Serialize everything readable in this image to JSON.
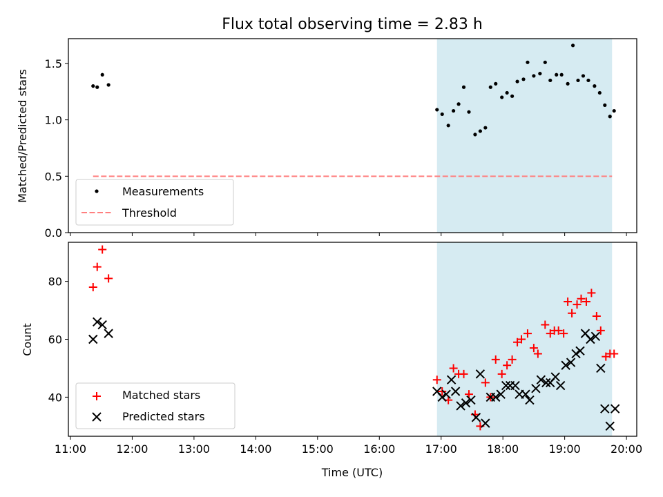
{
  "chart_data": [
    {
      "type": "scatter",
      "title": "Flux total observing time = 2.83 h",
      "ylabel": "Matched/Predicted stars",
      "xlabel": "",
      "xlim": [
        "10:58",
        "20:10"
      ],
      "ylim": [
        0,
        1.72
      ],
      "x_ticks": [
        "11:00",
        "12:00",
        "13:00",
        "14:00",
        "15:00",
        "16:00",
        "17:00",
        "18:00",
        "19:00",
        "20:00"
      ],
      "y_ticks": [
        "0.0",
        "0.5",
        "1.0",
        "1.5"
      ],
      "grid": false,
      "legend_position": "lower-left",
      "shaded_interval": {
        "start": "16:56",
        "end": "19:46",
        "color": "#add8e6"
      },
      "series": [
        {
          "name": "Measurements",
          "marker": "dot",
          "color": "#000000",
          "x": [
            "11:22",
            "11:26",
            "11:31",
            "11:37",
            "16:56",
            "17:01",
            "17:07",
            "17:12",
            "17:17",
            "17:22",
            "17:27",
            "17:33",
            "17:38",
            "17:43",
            "17:48",
            "17:53",
            "17:59",
            "18:04",
            "18:09",
            "18:14",
            "18:20",
            "18:24",
            "18:30",
            "18:36",
            "18:41",
            "18:46",
            "18:52",
            "18:57",
            "19:03",
            "19:08",
            "19:13",
            "19:18",
            "19:23",
            "19:29",
            "19:34",
            "19:39",
            "19:44",
            "19:48"
          ],
          "y": [
            1.3,
            1.29,
            1.4,
            1.31,
            1.09,
            1.05,
            0.95,
            1.08,
            1.14,
            1.29,
            1.07,
            0.87,
            0.9,
            0.93,
            1.29,
            1.32,
            1.2,
            1.24,
            1.21,
            1.34,
            1.36,
            1.51,
            1.39,
            1.41,
            1.51,
            1.35,
            1.4,
            1.4,
            1.32,
            1.66,
            1.35,
            1.39,
            1.35,
            1.3,
            1.24,
            1.13,
            1.03,
            1.08
          ]
        },
        {
          "name": "Threshold",
          "line_style": "dashed",
          "color": "#ff7f7f",
          "x": [
            "11:22",
            "19:46"
          ],
          "y": [
            0.5,
            0.5
          ]
        }
      ]
    },
    {
      "type": "scatter",
      "title": "",
      "ylabel": "Count",
      "xlabel": "Time (UTC)",
      "xlim": [
        "10:58",
        "20:10"
      ],
      "ylim": [
        26.5,
        93.5
      ],
      "x_ticks": [
        "11:00",
        "12:00",
        "13:00",
        "14:00",
        "15:00",
        "16:00",
        "17:00",
        "18:00",
        "19:00",
        "20:00"
      ],
      "y_ticks": [
        "40",
        "60",
        "80"
      ],
      "grid": false,
      "legend_position": "lower-left",
      "shaded_interval": {
        "start": "16:56",
        "end": "19:46",
        "color": "#add8e6"
      },
      "series": [
        {
          "name": "Matched stars",
          "marker": "plus",
          "color": "#ff0000",
          "x": [
            "11:22",
            "11:26",
            "11:31",
            "11:37",
            "16:56",
            "17:01",
            "17:07",
            "17:12",
            "17:17",
            "17:22",
            "17:27",
            "17:33",
            "17:38",
            "17:43",
            "17:48",
            "17:53",
            "17:59",
            "18:04",
            "18:09",
            "18:14",
            "18:18",
            "18:24",
            "18:30",
            "18:34",
            "18:41",
            "18:46",
            "18:50",
            "18:54",
            "18:59",
            "19:03",
            "19:07",
            "19:12",
            "19:16",
            "19:21",
            "19:26",
            "19:31",
            "19:35",
            "19:40",
            "19:44",
            "19:48"
          ],
          "y": [
            78,
            85,
            91,
            81,
            46,
            42,
            39,
            50,
            48,
            48,
            41,
            34,
            30,
            45,
            40,
            53,
            48,
            51,
            53,
            59,
            60,
            62,
            57,
            55,
            65,
            62,
            63,
            63,
            62,
            73,
            69,
            72,
            74,
            73,
            76,
            68,
            63,
            54,
            55,
            55
          ]
        },
        {
          "name": "Predicted stars",
          "marker": "x",
          "color": "#000000",
          "x": [
            "11:22",
            "11:26",
            "11:31",
            "11:37",
            "16:56",
            "17:01",
            "17:05",
            "17:10",
            "17:14",
            "17:19",
            "17:24",
            "17:29",
            "17:34",
            "17:38",
            "17:43",
            "17:48",
            "17:53",
            "17:58",
            "18:03",
            "18:07",
            "18:12",
            "18:16",
            "18:22",
            "18:26",
            "18:32",
            "18:37",
            "18:42",
            "18:46",
            "18:51",
            "18:56",
            "19:01",
            "19:06",
            "19:11",
            "19:15",
            "19:20",
            "19:25",
            "19:30",
            "19:35",
            "19:39",
            "19:44",
            "19:49"
          ],
          "y": [
            60,
            66,
            65,
            62,
            42,
            40,
            41,
            46,
            42,
            37,
            38,
            39,
            33,
            48,
            31,
            40,
            40,
            41,
            44,
            44,
            44,
            41,
            41,
            39,
            43,
            46,
            45,
            45,
            47,
            44,
            51,
            52,
            55,
            56,
            62,
            60,
            61,
            50,
            36,
            30,
            36
          ]
        }
      ]
    }
  ]
}
